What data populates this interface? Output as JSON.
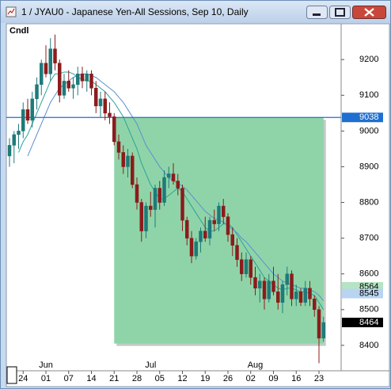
{
  "window_title": "1 / JYAU0 - Japanese Yen-All Sessions, Sep 10, Daily",
  "chart_data": {
    "type": "candlestick",
    "label": "Cndl",
    "open": [
      8930,
      8960,
      8990,
      9000,
      9060,
      9030,
      9090,
      9130,
      9190,
      9160,
      9230,
      9190,
      9100,
      9140,
      9120,
      9130,
      9160,
      9140,
      9160,
      9120,
      9070,
      9090,
      9050,
      9040,
      8970,
      8940,
      8900,
      8930,
      8850,
      8800,
      8720,
      8790,
      8780,
      8840,
      8800,
      8870,
      8880,
      8860,
      8840,
      8750,
      8700,
      8650,
      8690,
      8720,
      8700,
      8750,
      8740,
      8790,
      8760,
      8710,
      8680,
      8640,
      8600,
      8640,
      8590,
      8560,
      8580,
      8530,
      8580,
      8550,
      8520,
      8570,
      8600,
      8530,
      8550,
      8520,
      8560,
      8530,
      8500,
      8420
    ],
    "high": [
      8980,
      9000,
      9020,
      9080,
      9090,
      9110,
      9150,
      9200,
      9240,
      9260,
      9270,
      9200,
      9160,
      9170,
      9150,
      9180,
      9180,
      9170,
      9170,
      9140,
      9110,
      9110,
      9080,
      9050,
      8990,
      8960,
      8950,
      8940,
      8870,
      8810,
      8800,
      8830,
      8850,
      8860,
      8890,
      8900,
      8910,
      8880,
      8850,
      8760,
      8720,
      8700,
      8730,
      8760,
      8760,
      8780,
      8800,
      8810,
      8770,
      8730,
      8700,
      8660,
      8660,
      8650,
      8620,
      8600,
      8590,
      8600,
      8620,
      8600,
      8580,
      8620,
      8610,
      8570,
      8560,
      8580,
      8580,
      8540,
      8510,
      8480
    ],
    "low": [
      8900,
      8910,
      8950,
      8980,
      9020,
      9010,
      9060,
      9100,
      9150,
      9140,
      9170,
      9080,
      9090,
      9110,
      9090,
      9100,
      9120,
      9110,
      9100,
      9050,
      9040,
      9030,
      9020,
      8960,
      8920,
      8880,
      8870,
      8840,
      8780,
      8690,
      8700,
      8760,
      8730,
      8780,
      8790,
      8840,
      8850,
      8820,
      8720,
      8680,
      8630,
      8640,
      8660,
      8690,
      8680,
      8720,
      8720,
      8740,
      8690,
      8650,
      8620,
      8580,
      8590,
      8570,
      8540,
      8520,
      8500,
      8520,
      8540,
      8500,
      8490,
      8540,
      8510,
      8510,
      8510,
      8510,
      8510,
      8480,
      8350,
      8410
    ],
    "close": [
      8960,
      8990,
      9000,
      9060,
      9030,
      9090,
      9130,
      9190,
      9160,
      9230,
      9190,
      9100,
      9140,
      9120,
      9130,
      9160,
      9140,
      9160,
      9120,
      9070,
      9090,
      9050,
      9040,
      8970,
      8940,
      8900,
      8930,
      8850,
      8800,
      8720,
      8790,
      8780,
      8840,
      8800,
      8870,
      8880,
      8860,
      8840,
      8750,
      8700,
      8650,
      8690,
      8720,
      8700,
      8750,
      8740,
      8790,
      8760,
      8710,
      8680,
      8640,
      8600,
      8640,
      8590,
      8560,
      8580,
      8530,
      8580,
      8550,
      8520,
      8570,
      8600,
      8530,
      8550,
      8520,
      8560,
      8530,
      8500,
      8420,
      8464
    ],
    "up_color": "#1f7a7a",
    "down_color": "#8b1c1c",
    "overlays": [
      {
        "color": "#2aa39a",
        "values": [
          null,
          null,
          8940,
          8970,
          8990,
          9020,
          9050,
          9080,
          9110,
          9140,
          9160,
          9160,
          9165,
          9165,
          9160,
          9150,
          9145,
          9140,
          9140,
          9130,
          9120,
          9110,
          9095,
          9080,
          9060,
          9040,
          9010,
          8980,
          8950,
          8910,
          8880,
          8850,
          8830,
          8810,
          8810,
          8820,
          8830,
          8840,
          8830,
          8810,
          8790,
          8770,
          8750,
          8730,
          8720,
          8720,
          8730,
          8740,
          8740,
          8730,
          8710,
          8690,
          8670,
          8650,
          8630,
          8610,
          8590,
          8580,
          8570,
          8560,
          8555,
          8560,
          8560,
          8555,
          8550,
          8550,
          8545,
          8540,
          8520,
          8500
        ]
      },
      {
        "color": "#5b8fd0",
        "values": [
          null,
          null,
          null,
          null,
          8930,
          8960,
          8990,
          9020,
          9050,
          9080,
          9100,
          9120,
          9130,
          9140,
          9150,
          9155,
          9160,
          9160,
          9155,
          9150,
          9140,
          9130,
          9120,
          9110,
          9095,
          9080,
          9060,
          9040,
          9020,
          8990,
          8960,
          8940,
          8920,
          8900,
          8885,
          8870,
          8860,
          8855,
          8845,
          8835,
          8820,
          8805,
          8790,
          8775,
          8765,
          8755,
          8750,
          8745,
          8735,
          8725,
          8715,
          8700,
          8690,
          8675,
          8660,
          8645,
          8630,
          8615,
          8600,
          8590,
          8580,
          8575,
          8570,
          8565,
          8560,
          8560,
          8555,
          8550,
          8540,
          8525
        ]
      }
    ],
    "zone": {
      "from": 23,
      "to": 69,
      "top": 9038,
      "bottom": 8405,
      "color": "#8fd4a8"
    },
    "hline": {
      "value": 9038,
      "color": "#1f6fd0"
    },
    "price_labels": [
      {
        "value": 9038,
        "color": "#1f6fd0",
        "text_color": "#ffffff"
      },
      {
        "value": 8564,
        "color": "#b6e3c3",
        "text_color": "#000000"
      },
      {
        "value": 8545,
        "color": "#b8d4f0",
        "text_color": "#000000"
      },
      {
        "value": 8464,
        "color": "#000000",
        "text_color": "#ffffff"
      }
    ],
    "ylim": [
      8331,
      9298
    ],
    "yticks": [
      8400,
      8500,
      8600,
      8700,
      8800,
      8900,
      9000,
      9100,
      9200
    ],
    "xticks": [
      {
        "value": 3,
        "label": "24"
      },
      {
        "value": 8,
        "label": "01"
      },
      {
        "value": 13,
        "label": "07"
      },
      {
        "value": 18,
        "label": "14"
      },
      {
        "value": 23,
        "label": "21"
      },
      {
        "value": 28,
        "label": "28"
      },
      {
        "value": 33,
        "label": "05"
      },
      {
        "value": 38,
        "label": "12"
      },
      {
        "value": 43,
        "label": "19"
      },
      {
        "value": 48,
        "label": "26"
      },
      {
        "value": 53,
        "label": "02"
      },
      {
        "value": 58,
        "label": "09"
      },
      {
        "value": 63,
        "label": "16"
      },
      {
        "value": 68,
        "label": "23"
      }
    ],
    "month_ticks": [
      {
        "value": 8,
        "label": "Jun"
      },
      {
        "value": 31,
        "label": "Jul"
      },
      {
        "value": 54,
        "label": "Aug"
      }
    ]
  }
}
